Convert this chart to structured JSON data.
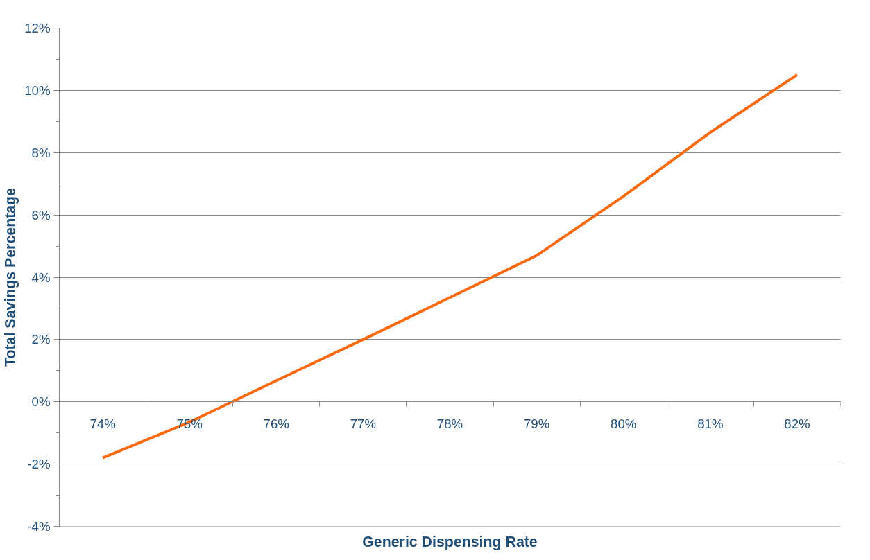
{
  "chart_data": {
    "type": "line",
    "xlabel": "Generic Dispensing Rate",
    "ylabel": "Total Savings Percentage",
    "categories": [
      "74%",
      "75%",
      "76%",
      "77%",
      "78%",
      "79%",
      "80%",
      "81%",
      "82%"
    ],
    "series": [
      {
        "color": "#ff6a10",
        "values": [
          -1.8,
          -0.65,
          0.68,
          2.0,
          3.35,
          4.7,
          6.6,
          8.65,
          10.5
        ]
      }
    ],
    "ylim": [
      -4,
      12
    ],
    "yticks": [
      {
        "value": -4,
        "label": "-4%"
      },
      {
        "value": -2,
        "label": "-2%"
      },
      {
        "value": 0,
        "label": "0%"
      },
      {
        "value": 2,
        "label": "2%"
      },
      {
        "value": 4,
        "label": "4%"
      },
      {
        "value": 6,
        "label": "6%"
      },
      {
        "value": 8,
        "label": "8%"
      },
      {
        "value": 10,
        "label": "10%"
      },
      {
        "value": 12,
        "label": "12%"
      }
    ],
    "grid": "y",
    "marker": "none",
    "line_style": "solid"
  }
}
